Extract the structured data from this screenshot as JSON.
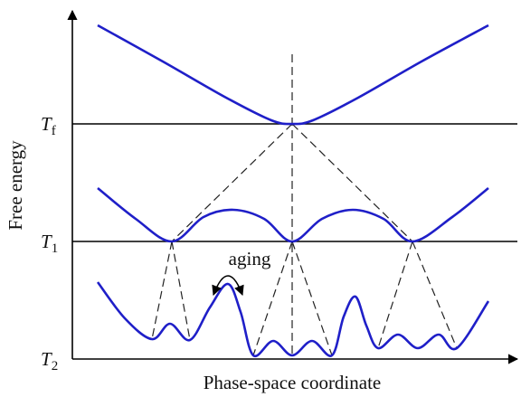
{
  "axes": {
    "y_label": "Free energy",
    "x_label": "Phase-space coordinate"
  },
  "levels": [
    {
      "symbol": "T",
      "subscript": "f"
    },
    {
      "symbol": "T",
      "subscript": "1"
    },
    {
      "symbol": "T",
      "subscript": "2"
    }
  ],
  "annotation": "aging"
}
